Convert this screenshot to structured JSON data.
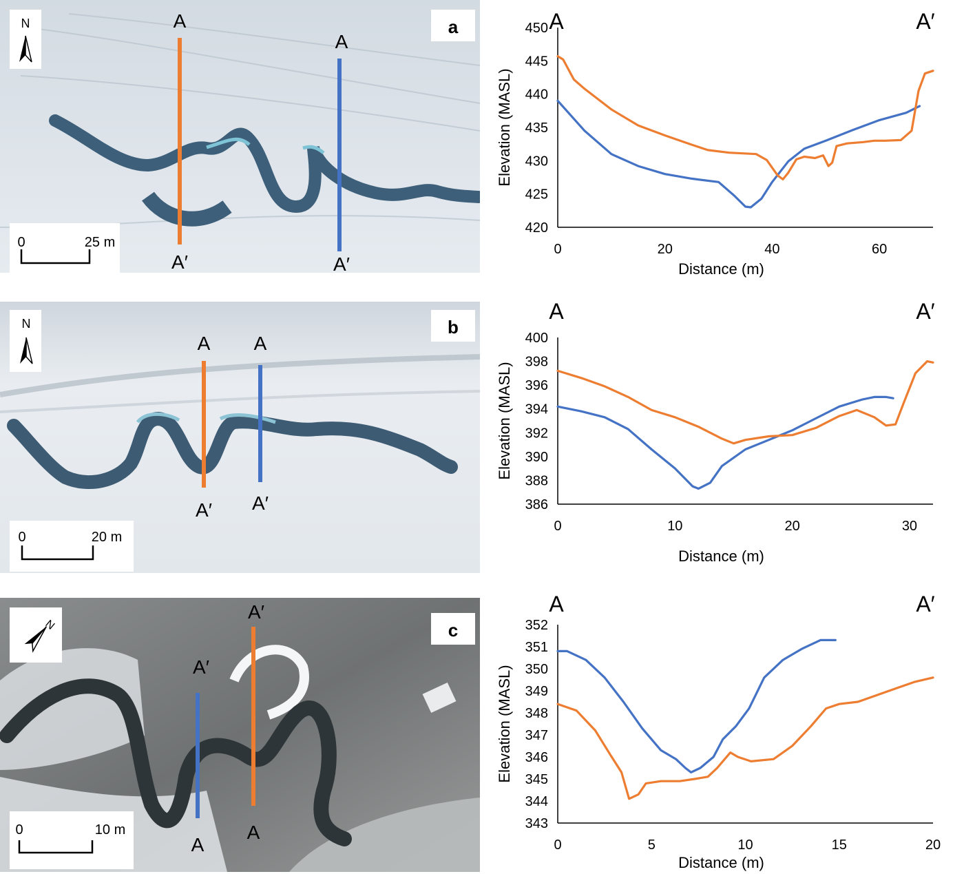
{
  "panels": [
    {
      "label": "a",
      "north": "N",
      "scale": {
        "zero": "0",
        "end": "25 m"
      },
      "transects": [
        {
          "color": "#ed7d31",
          "top": "A",
          "bottom": "A′"
        },
        {
          "color": "#4472c4",
          "top": "A",
          "bottom": "A′"
        }
      ]
    },
    {
      "label": "b",
      "north": "N",
      "scale": {
        "zero": "0",
        "end": "20 m"
      },
      "transects": [
        {
          "color": "#ed7d31",
          "top": "A",
          "bottom": "A′"
        },
        {
          "color": "#4472c4",
          "top": "A",
          "bottom": "A′"
        }
      ]
    },
    {
      "label": "c",
      "north": "N",
      "scale": {
        "zero": "0",
        "end": "10 m"
      },
      "transects": [
        {
          "color": "#4472c4",
          "top": "A′",
          "bottom": "A"
        },
        {
          "color": "#ed7d31",
          "top": "A′",
          "bottom": "A"
        }
      ]
    }
  ],
  "chart_data": [
    {
      "type": "line",
      "panel": "a",
      "start_label": "A",
      "end_label": "A′",
      "xlabel": "Distance (m)",
      "ylabel": "Elevation (MASL)",
      "xlim": [
        0,
        70
      ],
      "ylim": [
        420,
        450
      ],
      "xticks": [
        0,
        20,
        40,
        60
      ],
      "yticks": [
        420,
        425,
        430,
        435,
        440,
        445,
        450
      ],
      "grid": false,
      "legend": "none",
      "series": [
        {
          "color": "#4472c4",
          "x": [
            0,
            5,
            10,
            15,
            20,
            25,
            30,
            33,
            35,
            36,
            38,
            40,
            43,
            46,
            50,
            55,
            60,
            65,
            67.5
          ],
          "y": [
            439,
            434.5,
            431,
            429.2,
            428,
            427.3,
            426.8,
            424.7,
            423.1,
            423,
            424.3,
            426.8,
            429.9,
            431.8,
            433,
            434.6,
            436.1,
            437.2,
            438.2
          ]
        },
        {
          "color": "#ed7d31",
          "x": [
            0,
            1,
            3,
            5,
            10,
            15,
            20,
            25,
            28,
            32,
            37,
            39,
            41,
            42,
            43,
            44.5,
            46,
            48,
            49.5,
            50.5,
            51.2,
            52,
            54,
            57,
            59,
            61,
            64,
            66,
            67.3,
            68.5,
            70
          ],
          "y": [
            445.7,
            445.2,
            442.2,
            440.8,
            437.7,
            435.3,
            433.8,
            432.4,
            431.6,
            431.2,
            431,
            430.1,
            427.8,
            427.2,
            428.2,
            430.2,
            430.6,
            430.4,
            430.8,
            429.2,
            429.7,
            432.2,
            432.6,
            432.8,
            433,
            433,
            433.1,
            434.5,
            440.5,
            443.1,
            443.5
          ]
        }
      ]
    },
    {
      "type": "line",
      "panel": "b",
      "start_label": "A",
      "end_label": "A′",
      "xlabel": "Distance (m)",
      "ylabel": "Elevation (MASL)",
      "xlim": [
        0,
        32
      ],
      "ylim": [
        386,
        400
      ],
      "xticks": [
        0,
        10,
        20,
        30
      ],
      "yticks": [
        386,
        388,
        390,
        392,
        394,
        396,
        398,
        400
      ],
      "grid": false,
      "legend": "none",
      "series": [
        {
          "color": "#4472c4",
          "x": [
            0,
            2,
            4,
            6,
            8,
            10,
            11.5,
            12,
            13,
            14,
            16,
            18,
            20,
            22,
            24,
            26,
            27,
            28,
            28.6
          ],
          "y": [
            394.2,
            393.8,
            393.3,
            392.3,
            390.6,
            389,
            387.5,
            387.3,
            387.8,
            389.2,
            390.6,
            391.4,
            392.2,
            393.2,
            394.2,
            394.8,
            395,
            395,
            394.9
          ]
        },
        {
          "color": "#ed7d31",
          "x": [
            0,
            2,
            4,
            6,
            8,
            10,
            12,
            14,
            15,
            16,
            18,
            20,
            22,
            24,
            25.5,
            27,
            28,
            28.8,
            29.5,
            30.5,
            31.5,
            32
          ],
          "y": [
            397.2,
            396.6,
            395.9,
            395,
            393.9,
            393.3,
            392.5,
            391.5,
            391.1,
            391.4,
            391.7,
            391.8,
            392.4,
            393.4,
            393.9,
            393.3,
            392.6,
            392.7,
            394.5,
            397,
            398,
            397.9
          ]
        }
      ]
    },
    {
      "type": "line",
      "panel": "c",
      "start_label": "A",
      "end_label": "A′",
      "xlabel": "Distance (m)",
      "ylabel": "Elevation (MASL)",
      "xlim": [
        0,
        20
      ],
      "ylim": [
        343,
        352
      ],
      "xticks": [
        0,
        5,
        10,
        15,
        20
      ],
      "yticks": [
        343,
        344,
        345,
        346,
        347,
        348,
        349,
        350,
        351,
        352
      ],
      "grid": false,
      "legend": "none",
      "series": [
        {
          "color": "#4472c4",
          "x": [
            0,
            0.5,
            1.5,
            2.5,
            3.5,
            4.5,
            5.5,
            6.3,
            6.8,
            7.1,
            7.6,
            8.3,
            8.8,
            9.5,
            10.2,
            11,
            12,
            13,
            14,
            14.8
          ],
          "y": [
            350.8,
            350.8,
            350.4,
            349.6,
            348.5,
            347.3,
            346.3,
            345.9,
            345.5,
            345.3,
            345.5,
            346,
            346.8,
            347.4,
            348.2,
            349.6,
            350.4,
            350.9,
            351.3,
            351.3
          ]
        },
        {
          "color": "#ed7d31",
          "x": [
            0,
            1,
            2,
            2.8,
            3.4,
            3.8,
            4.3,
            4.7,
            5.5,
            6.5,
            7.3,
            8,
            8.5,
            9.2,
            9.6,
            10.3,
            11.5,
            12.5,
            13.5,
            14.3,
            15,
            16,
            17,
            18,
            19,
            20
          ],
          "y": [
            348.4,
            348.1,
            347.2,
            346.1,
            345.3,
            344.1,
            344.3,
            344.8,
            344.9,
            344.9,
            345,
            345.1,
            345.5,
            346.2,
            346,
            345.8,
            345.9,
            346.5,
            347.4,
            348.2,
            348.4,
            348.5,
            348.8,
            349.1,
            349.4,
            349.6
          ]
        }
      ]
    }
  ]
}
